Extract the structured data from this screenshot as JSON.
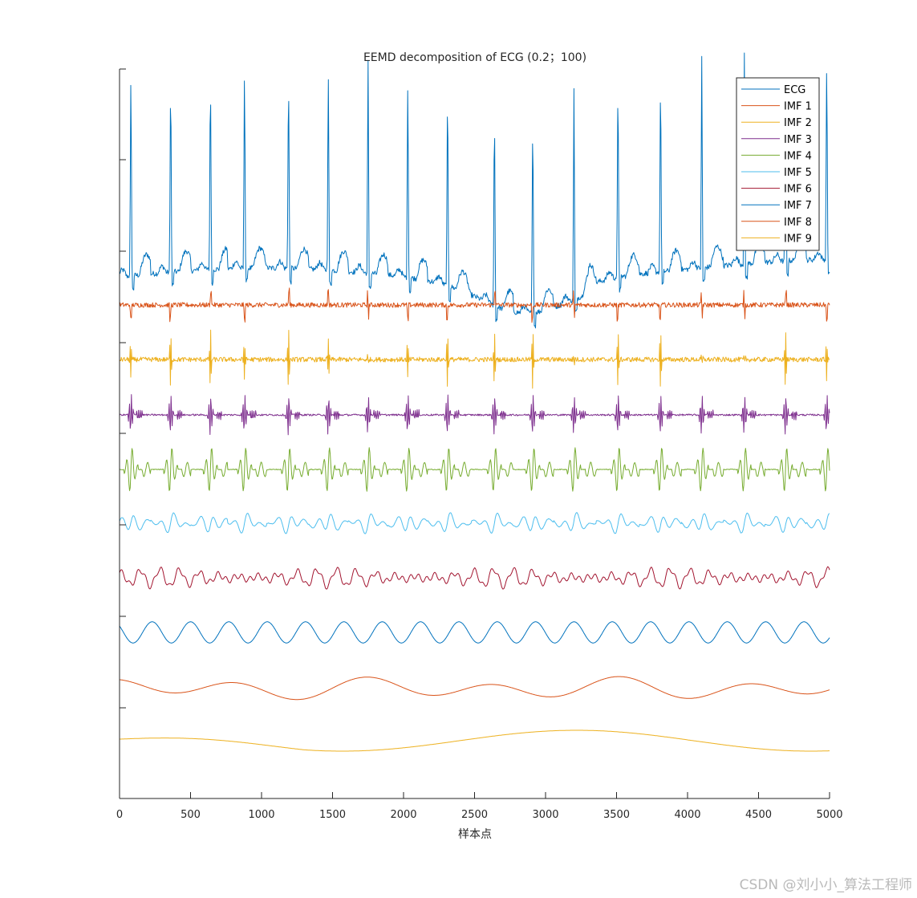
{
  "chart_data": {
    "type": "line",
    "title": "EEMD decomposition of ECG (0.2；100)",
    "xlabel": "样本点",
    "ylabel": "",
    "xlim": [
      0,
      5000
    ],
    "xticks": [
      0,
      500,
      1000,
      1500,
      2000,
      2500,
      3000,
      3500,
      4000,
      4500,
      5000
    ],
    "ytick_labels": "none",
    "legend_position": "top-right",
    "n_samples": 5000,
    "r_peaks": [
      80,
      360,
      640,
      880,
      1190,
      1470,
      1750,
      2030,
      2310,
      2640,
      2910,
      3200,
      3510,
      3810,
      4100,
      4400,
      4690,
      4980
    ],
    "series": [
      {
        "name": "ECG",
        "color": "#0072BD",
        "baseline": 1.0,
        "peak_height": 0.75,
        "noise": 0.035
      },
      {
        "name": "IMF 1",
        "color": "#D95319",
        "baseline": 0,
        "amplitude": 0.05,
        "noise": 0.035
      },
      {
        "name": "IMF 2",
        "color": "#EDB120",
        "baseline": 0,
        "amplitude": 0.28,
        "noise": 0.03
      },
      {
        "name": "IMF 3",
        "color": "#7E2F8E",
        "baseline": 0,
        "amplitude": 0.3,
        "noise": 0.012
      },
      {
        "name": "IMF 4",
        "color": "#77AC30",
        "baseline": 0,
        "amplitude": 0.32,
        "noise": 0.006
      },
      {
        "name": "IMF 5",
        "color": "#4DBEEE",
        "baseline": 0,
        "amplitude": 0.18,
        "noise": 0.004
      },
      {
        "name": "IMF 6",
        "color": "#A2142F",
        "baseline": 0,
        "amplitude": 0.1,
        "noise": 0.004
      },
      {
        "name": "IMF 7",
        "color": "#0072BD",
        "baseline": 0,
        "amplitude": 0.12,
        "period_samples": 270
      },
      {
        "name": "IMF 8",
        "color": "#D95319",
        "baseline": 0,
        "amplitude": 0.12,
        "period_samples": 900
      },
      {
        "name": "IMF 9",
        "color": "#EDB120",
        "baseline": 0,
        "amplitude": 0.13,
        "period_samples": 3300
      }
    ]
  },
  "watermark": "CSDN @刘小小_算法工程师"
}
